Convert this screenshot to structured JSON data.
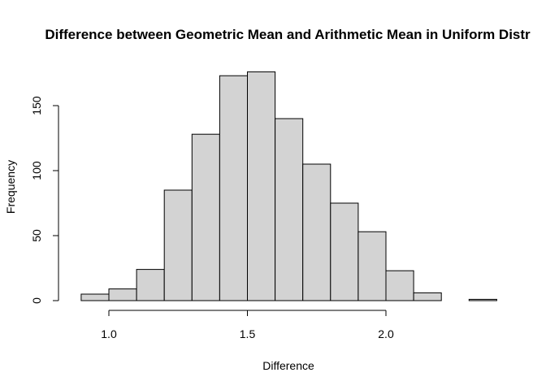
{
  "chart_data": {
    "type": "bar",
    "title": "Difference between Geometric Mean and Arithmetic Mean in Uniform Distr",
    "xlabel": "Difference",
    "ylabel": "Frequency",
    "xlim": [
      0.9,
      2.4
    ],
    "ylim": [
      0,
      176
    ],
    "x_ticks": [
      1.0,
      1.5,
      2.0
    ],
    "x_tick_labels": [
      "1.0",
      "1.5",
      "2.0"
    ],
    "y_ticks": [
      0,
      50,
      100,
      150
    ],
    "y_tick_labels": [
      "0",
      "50",
      "100",
      "150"
    ],
    "bin_edges": [
      0.9,
      1.0,
      1.1,
      1.2,
      1.3,
      1.4,
      1.5,
      1.6,
      1.7,
      1.8,
      1.9,
      2.0,
      2.1,
      2.2,
      2.3,
      2.4
    ],
    "values": [
      5,
      9,
      24,
      85,
      128,
      173,
      176,
      140,
      105,
      75,
      53,
      23,
      6,
      0,
      1
    ],
    "grid": false,
    "bar_color": "#d3d3d3",
    "edge_color": "#000000"
  }
}
